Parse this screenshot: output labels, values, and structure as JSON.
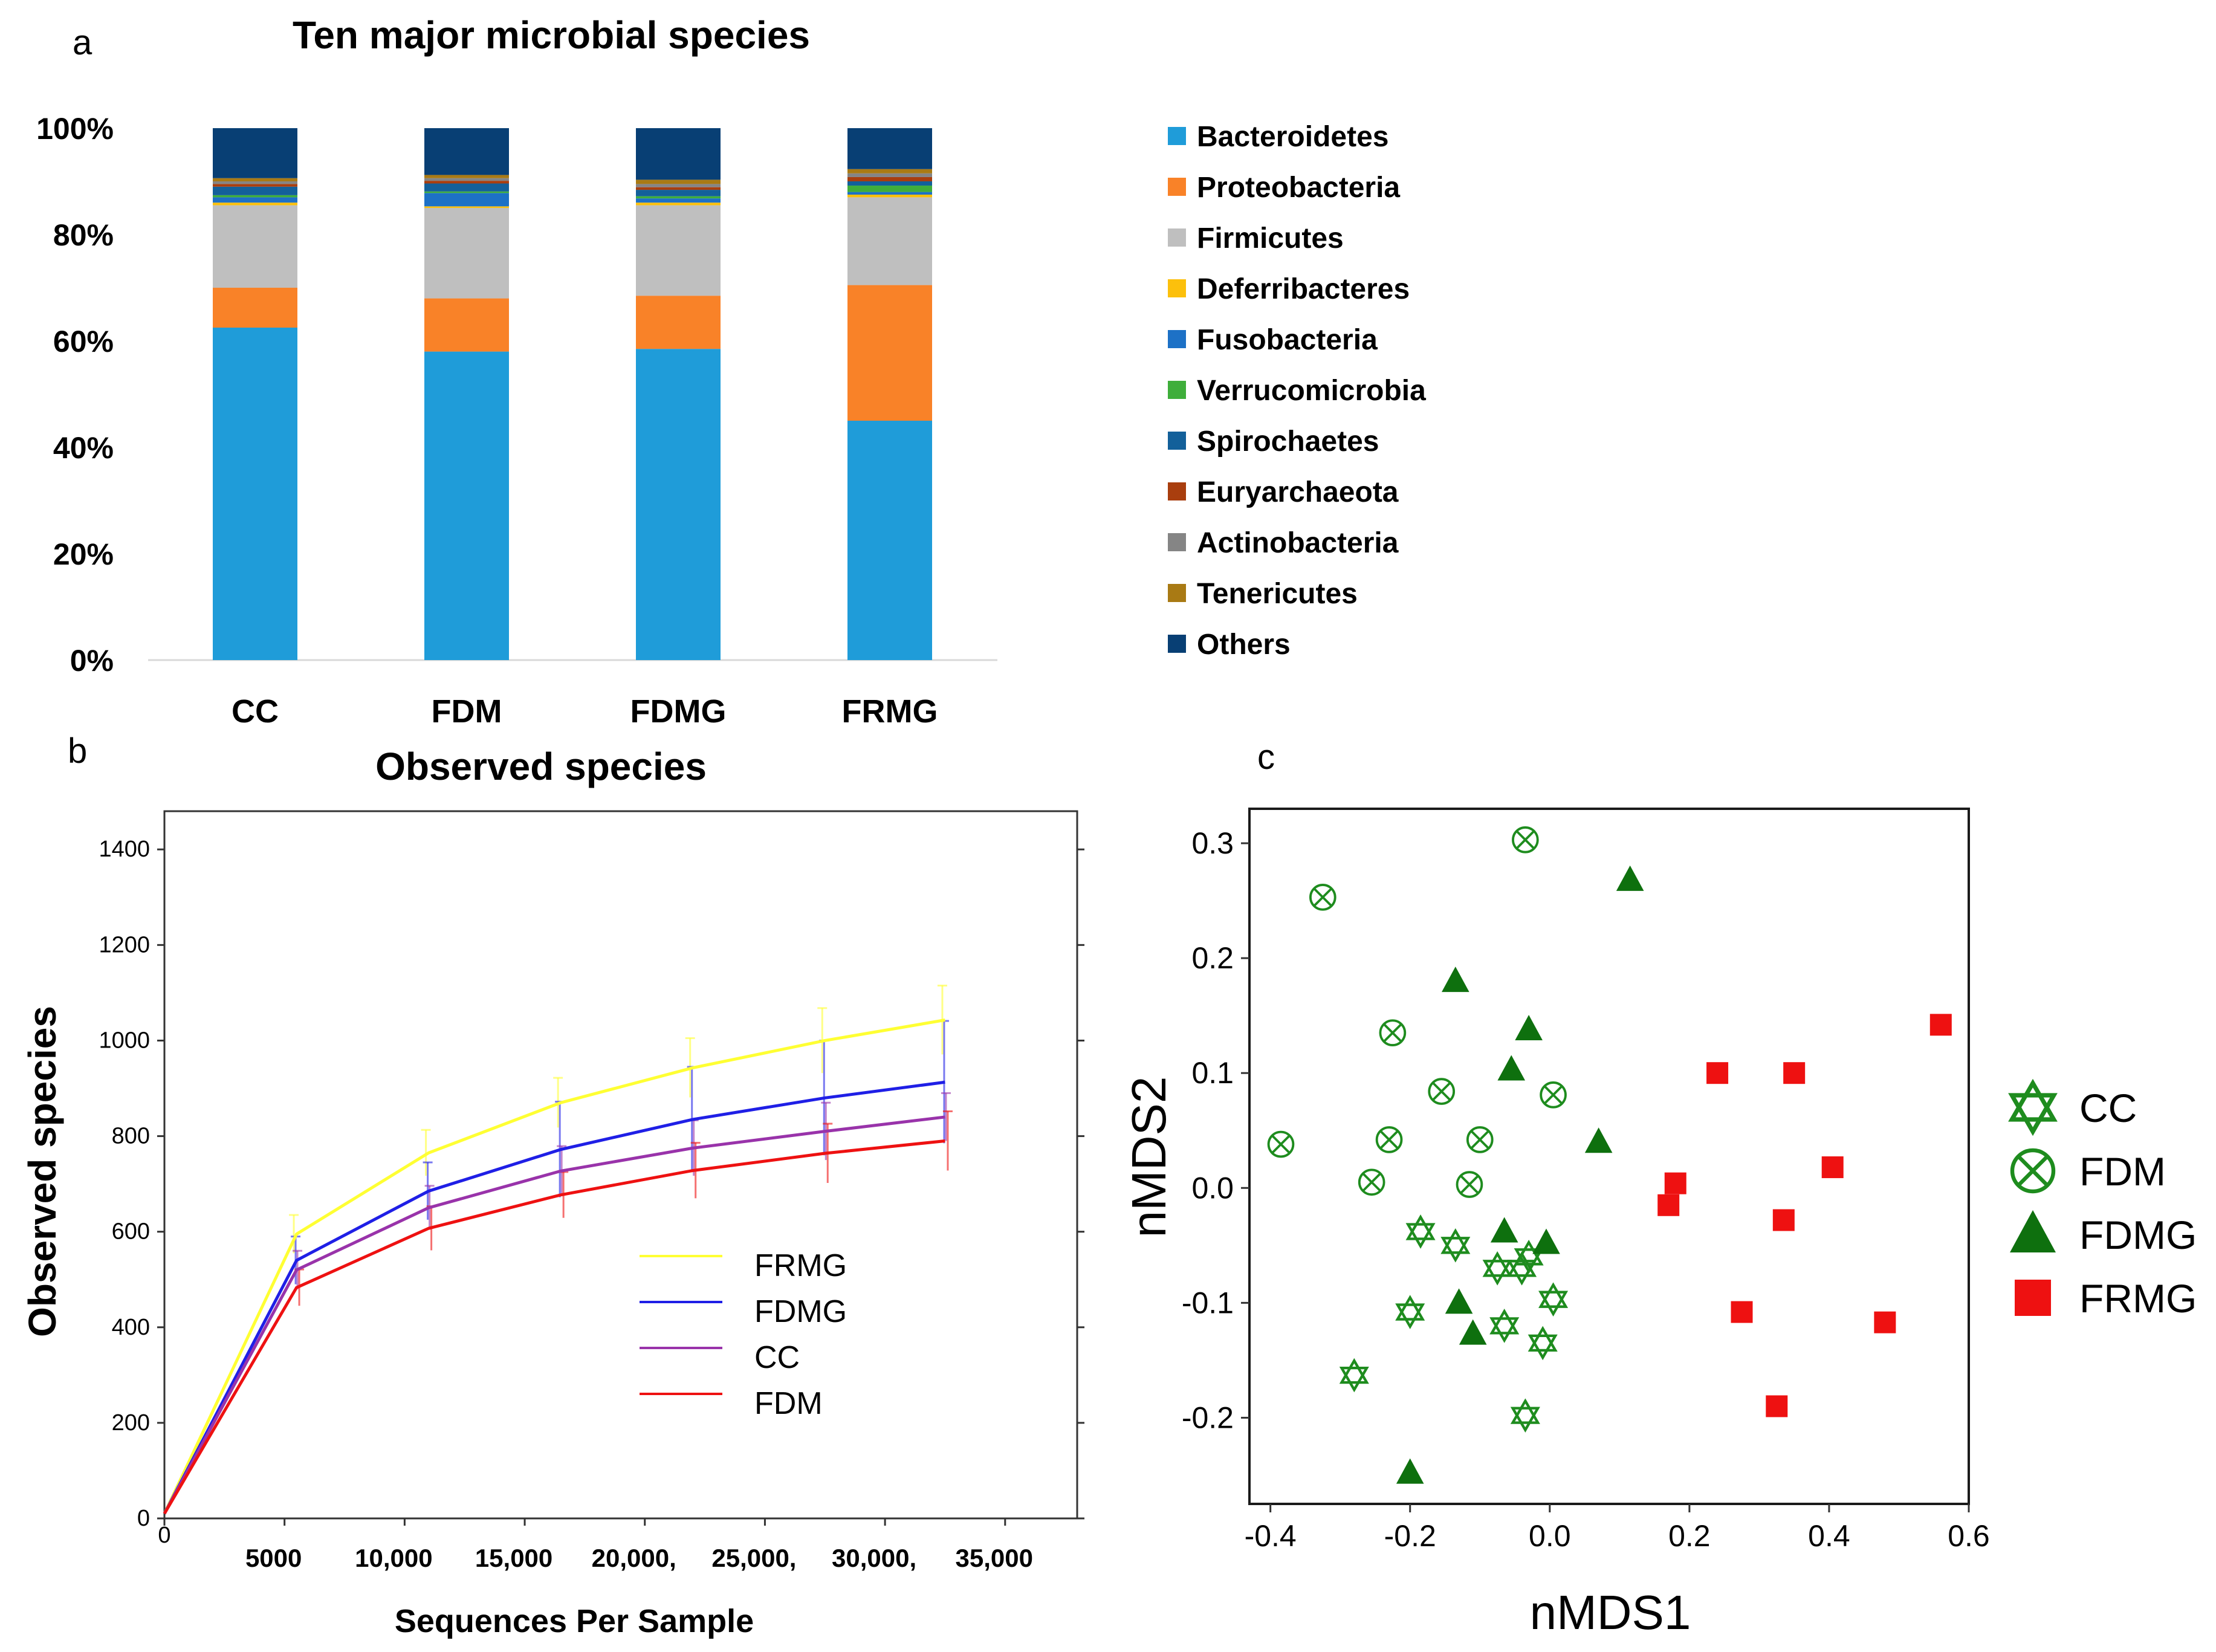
{
  "chart_data": [
    {
      "panel_label": "a",
      "type": "bar",
      "stacked": true,
      "title": "Ten major microbial species",
      "xlabel": "",
      "ylabel": "",
      "ylim": [
        0,
        100
      ],
      "yticks": [
        "0%",
        "20%",
        "40%",
        "60%",
        "80%",
        "100%"
      ],
      "ytick_values": [
        0,
        20,
        40,
        60,
        80,
        100
      ],
      "categories": [
        "CC",
        "FDM",
        "FDMG",
        "FRMG"
      ],
      "legend_position": "right",
      "series": [
        {
          "name": "Bacteroidetes",
          "color": "#1F9CD9",
          "values": [
            62.5,
            58.0,
            58.5,
            45.0
          ]
        },
        {
          "name": "Proteobacteria",
          "color": "#F98228",
          "values": [
            7.5,
            10.0,
            10.0,
            25.5
          ]
        },
        {
          "name": "Firmicutes",
          "color": "#BFBFBF",
          "values": [
            15.5,
            17.0,
            17.0,
            16.5
          ]
        },
        {
          "name": "Deferribacteres",
          "color": "#FCC00C",
          "values": [
            0.5,
            0.3,
            0.5,
            0.5
          ]
        },
        {
          "name": "Fusobacteria",
          "color": "#1D71C6",
          "values": [
            1.0,
            2.5,
            0.8,
            0.5
          ]
        },
        {
          "name": "Verrucomicrobia",
          "color": "#3FAE3B",
          "values": [
            0.4,
            0.3,
            0.4,
            1.2
          ]
        },
        {
          "name": "Spirochaetes",
          "color": "#13609A",
          "values": [
            1.6,
            1.5,
            1.2,
            0.8
          ]
        },
        {
          "name": "Euryarchaeota",
          "color": "#A93E0E",
          "values": [
            0.5,
            0.5,
            0.5,
            0.8
          ]
        },
        {
          "name": "Actinobacteria",
          "color": "#858585",
          "values": [
            0.5,
            0.5,
            0.6,
            0.7
          ]
        },
        {
          "name": "Tenericutes",
          "color": "#A97A14",
          "values": [
            0.6,
            0.6,
            0.8,
            0.8
          ]
        },
        {
          "name": "Others",
          "color": "#083F74",
          "values": [
            9.4,
            8.8,
            9.7,
            7.7
          ]
        }
      ]
    },
    {
      "panel_label": "b",
      "type": "line",
      "title": "Observed species",
      "xlabel": "Sequences Per Sample",
      "ylabel": "Observed species",
      "xlim": [
        0,
        38000
      ],
      "ylim": [
        0,
        1480
      ],
      "xticks": [
        0,
        5000,
        10000,
        15000,
        20000,
        25000,
        30000,
        35000
      ],
      "xtick_labels": [
        "0",
        "5000",
        "10,000",
        "15,000",
        "20,000,",
        "25,000,",
        "30,000,",
        "35,000"
      ],
      "yticks": [
        0,
        200,
        400,
        600,
        800,
        1000,
        1200,
        1400
      ],
      "ytick_labels": [
        "0",
        "200",
        "400",
        "600",
        "800",
        "1000",
        "1200",
        "1400"
      ],
      "x": [
        0,
        5500,
        11000,
        16500,
        22000,
        27500,
        32500
      ],
      "legend_position": "center-right",
      "series": [
        {
          "name": "FRMG",
          "color": "#FFFF33",
          "values": [
            10,
            595,
            765,
            870,
            943,
            1000,
            1043
          ],
          "errors": [
            0,
            40,
            48,
            52,
            62,
            68,
            72
          ]
        },
        {
          "name": "FDMG",
          "color": "#1F1FE6",
          "values": [
            10,
            540,
            685,
            772,
            835,
            880,
            913
          ],
          "errors": [
            0,
            50,
            60,
            100,
            110,
            120,
            128
          ]
        },
        {
          "name": "CC",
          "color": "#9933AA",
          "values": [
            10,
            520,
            650,
            727,
            775,
            810,
            840
          ],
          "errors": [
            0,
            40,
            46,
            52,
            58,
            60,
            50
          ]
        },
        {
          "name": "FDM",
          "color": "#EE1111",
          "values": [
            10,
            483,
            607,
            677,
            728,
            764,
            790
          ],
          "errors": [
            0,
            38,
            46,
            48,
            58,
            62,
            62
          ]
        }
      ]
    },
    {
      "panel_label": "c",
      "type": "scatter",
      "title": "",
      "xlabel": "nMDS1",
      "ylabel": "nMDS2",
      "xlim": [
        -0.43,
        0.6
      ],
      "ylim": [
        -0.275,
        0.33
      ],
      "xticks": [
        -0.4,
        -0.2,
        0.0,
        0.2,
        0.4,
        0.6
      ],
      "xtick_labels": [
        "-0.4",
        "-0.2",
        "0.0",
        "0.2",
        "0.4",
        "0.6"
      ],
      "yticks": [
        -0.2,
        -0.1,
        0.0,
        0.1,
        0.2,
        0.3
      ],
      "ytick_labels": [
        "-0.2",
        "-0.1",
        "0.0",
        "0.1",
        "0.2",
        "0.3"
      ],
      "legend_position": "right",
      "series": [
        {
          "name": "CC",
          "marker": "hexagram",
          "color": "#1E8C1E",
          "x": [
            -0.185,
            -0.135,
            -0.075,
            -0.04,
            -0.03,
            0.005,
            -0.2,
            -0.065,
            -0.01,
            -0.28,
            -0.035
          ],
          "y": [
            -0.038,
            -0.05,
            -0.07,
            -0.07,
            -0.06,
            -0.097,
            -0.108,
            -0.12,
            -0.135,
            -0.163,
            -0.198
          ]
        },
        {
          "name": "FDM",
          "marker": "circle-x",
          "color": "#1E8C1E",
          "x": [
            -0.035,
            -0.325,
            -0.225,
            -0.155,
            0.005,
            -0.385,
            -0.23,
            -0.1,
            -0.255,
            -0.115
          ],
          "y": [
            0.303,
            0.253,
            0.135,
            0.084,
            0.081,
            0.038,
            0.042,
            0.042,
            0.005,
            0.003
          ]
        },
        {
          "name": "FDMG",
          "marker": "triangle",
          "color": "#0E700E",
          "x": [
            0.115,
            -0.135,
            -0.03,
            -0.055,
            0.07,
            -0.065,
            -0.005,
            -0.13,
            -0.11,
            -0.2
          ],
          "y": [
            0.268,
            0.18,
            0.138,
            0.103,
            0.04,
            -0.038,
            -0.048,
            -0.1,
            -0.127,
            -0.248
          ]
        },
        {
          "name": "FRMG",
          "marker": "square",
          "color": "#EE1111",
          "x": [
            0.56,
            0.24,
            0.35,
            0.405,
            0.18,
            0.17,
            0.335,
            0.275,
            0.48,
            0.325
          ],
          "y": [
            0.142,
            0.1,
            0.1,
            0.018,
            0.004,
            -0.015,
            -0.028,
            -0.108,
            -0.117,
            -0.19
          ]
        }
      ]
    }
  ]
}
